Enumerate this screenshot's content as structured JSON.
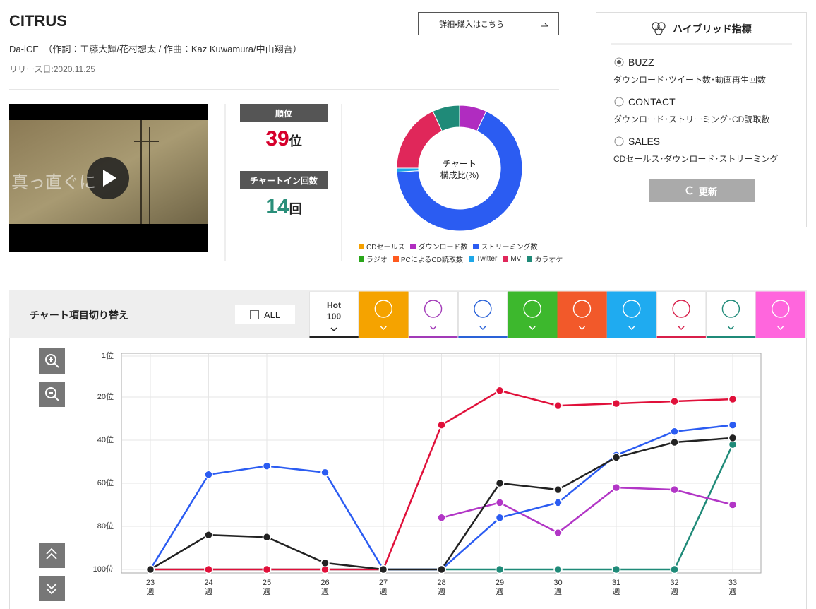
{
  "header": {
    "title": "CITRUS",
    "artist_line": "Da-iCE　（作詞：工藤大輝/花村想太 / 作曲：Kaz Kuwamura/中山翔吾）",
    "release": "リリース日:2020.11.25",
    "detail_button": "詳細・購入はこちら"
  },
  "video": {
    "caption": "真っ直ぐに"
  },
  "stats": {
    "rank": {
      "label": "順位",
      "value": 39,
      "unit": "位"
    },
    "count": {
      "label": "チャートイン回数",
      "value": 14,
      "unit": "回"
    }
  },
  "hybrid": {
    "title": "ハイブリッド指標",
    "selected": 0,
    "options": [
      {
        "name": "BUZZ",
        "description": "ダウンロード･ツイート数･動画再生回数"
      },
      {
        "name": "CONTACT",
        "description": "ダウンロード･ストリーミング･CD読取数"
      },
      {
        "name": "SALES",
        "description": "CDセールス･ダウンロード･ストリーミング"
      }
    ],
    "update_button": "更新"
  },
  "switcher": {
    "title": "チャート項目切り替え",
    "all": "ALL",
    "hot100": "Hot 100"
  },
  "chart_data": [
    {
      "type": "donut",
      "center_label": [
        "チャート",
        "構成比(%)"
      ],
      "categories": [
        "CDセールス",
        "ダウンロード数",
        "ストリーミング数",
        "ラジオ",
        "PCによるCD読取数",
        "Twitter",
        "MV",
        "カラオケ"
      ],
      "values": [
        0,
        7,
        67,
        0,
        0,
        1,
        18,
        7
      ],
      "colors": [
        "#f5a000",
        "#b02cc0",
        "#2b5cf2",
        "#2aa61a",
        "#ff5a1f",
        "#1ea7e8",
        "#e0275a",
        "#1f8a78"
      ]
    },
    {
      "type": "line",
      "categories": [
        "23週",
        "24週",
        "25週",
        "26週",
        "27週",
        "28週",
        "29週",
        "30週",
        "31週",
        "32週",
        "33週"
      ],
      "ylim": [
        100,
        1
      ],
      "yticks": [
        {
          "value": 1,
          "label": "1位"
        },
        {
          "value": 20,
          "label": "20位"
        },
        {
          "value": 40,
          "label": "40位"
        },
        {
          "value": 60,
          "label": "60位"
        },
        {
          "value": 80,
          "label": "80位"
        },
        {
          "value": 100,
          "label": "100位"
        }
      ],
      "grid": true,
      "series": [
        {
          "color": "#1f8a78",
          "values": [
            100,
            100,
            100,
            100,
            100,
            100,
            100,
            100,
            100,
            100,
            42
          ]
        },
        {
          "color": "#b236c6",
          "values": [
            null,
            null,
            null,
            null,
            null,
            76,
            69,
            83,
            62,
            63,
            70
          ]
        },
        {
          "color": "#2b5cf2",
          "values": [
            100,
            56,
            52,
            55,
            100,
            100,
            76,
            69,
            47,
            36,
            33
          ]
        },
        {
          "color": "#e0103a",
          "values": [
            100,
            100,
            100,
            100,
            100,
            33,
            17,
            24,
            23,
            22,
            21
          ]
        },
        {
          "color": "#222222",
          "values": [
            100,
            84,
            85,
            97,
            100,
            100,
            60,
            63,
            48,
            41,
            39
          ]
        }
      ]
    }
  ]
}
